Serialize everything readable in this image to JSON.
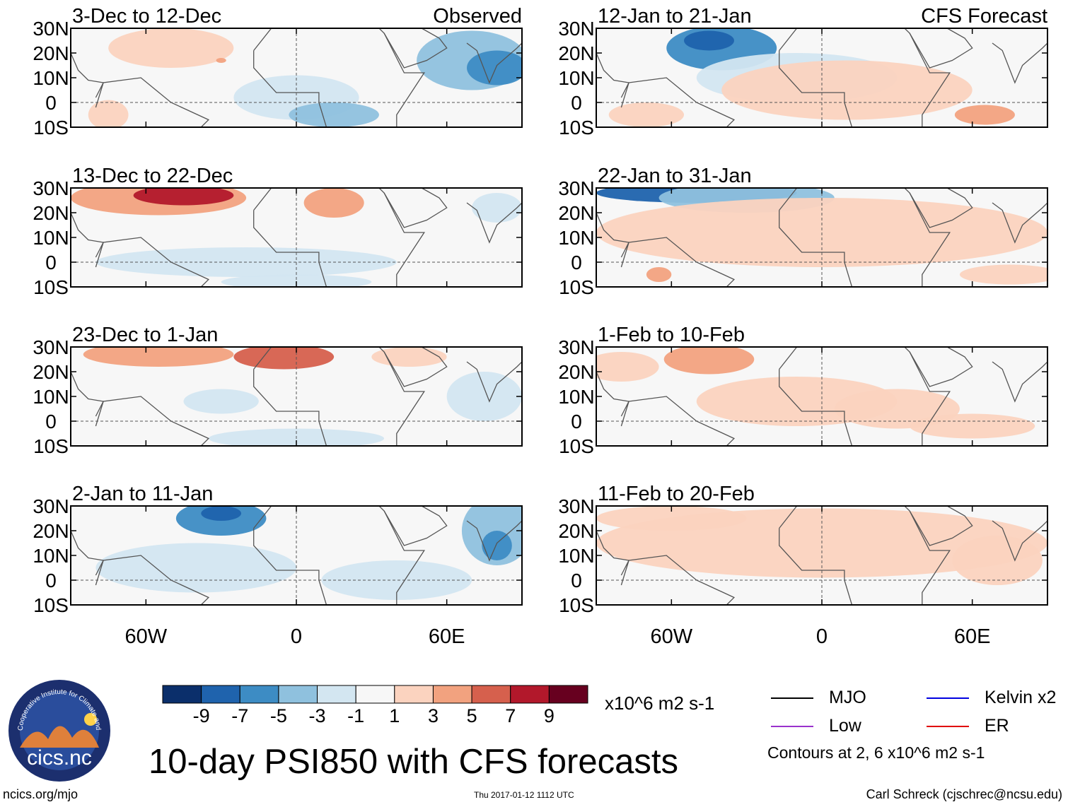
{
  "title": "10-day PSI850 with CFS forecasts",
  "left_column_label": "Observed",
  "right_column_label": "CFS Forecast",
  "chart_data": {
    "type": "heatmap",
    "variable": "850-hPa streamfunction anomaly (PSI850), 10-day mean",
    "units": "x10^6 m2 s-1",
    "lat_ticks": [
      "30N",
      "20N",
      "10N",
      "0",
      "10S"
    ],
    "lat_values": [
      30,
      20,
      10,
      0,
      -10
    ],
    "lon_ticks": [
      "60W",
      "0",
      "60E"
    ],
    "lon_values": [
      -60,
      0,
      60
    ],
    "lon_range": [
      -90,
      90
    ],
    "lat_range": [
      -10,
      30
    ],
    "panels": [
      {
        "period": "3-Dec to 12-Dec",
        "kind": "Observed"
      },
      {
        "period": "13-Dec to 22-Dec",
        "kind": "Observed"
      },
      {
        "period": "23-Dec to 1-Jan",
        "kind": "Observed"
      },
      {
        "period": "2-Jan to 11-Jan",
        "kind": "Observed"
      },
      {
        "period": "12-Jan to 21-Jan",
        "kind": "CFS Forecast"
      },
      {
        "period": "22-Jan to 31-Jan",
        "kind": "CFS Forecast"
      },
      {
        "period": "1-Feb to 10-Feb",
        "kind": "CFS Forecast"
      },
      {
        "period": "11-Feb to 20-Feb",
        "kind": "CFS Forecast"
      }
    ],
    "colorbar": {
      "labels": [
        "-9",
        "-7",
        "-5",
        "-3",
        "-1",
        "1",
        "3",
        "5",
        "7",
        "9"
      ],
      "colors": [
        "#0b2f6b",
        "#1f63ad",
        "#3d8cc4",
        "#8fc1de",
        "#d3e6f1",
        "#f7f7f7",
        "#fbd3bf",
        "#f2a27f",
        "#d6604d",
        "#b2182b",
        "#67001f"
      ]
    },
    "contour_legend": [
      {
        "name": "MJO",
        "color": "#000000"
      },
      {
        "name": "Kelvin x2",
        "color": "#0000e0"
      },
      {
        "name": "Low",
        "color": "#9932cc"
      },
      {
        "name": "ER",
        "color": "#e00000"
      }
    ],
    "contour_note": "Contours at 2, 6 x10^6 m2 s-1"
  },
  "logo_text": "cics.nc",
  "logo_ring_text": "Cooperative Institute for Climate and Satellites",
  "footer": {
    "left": "ncics.org/mjo",
    "center": "Thu 2017-01-12 1112 UTC",
    "right": "Carl Schreck (cjschrec@ncsu.edu)"
  }
}
